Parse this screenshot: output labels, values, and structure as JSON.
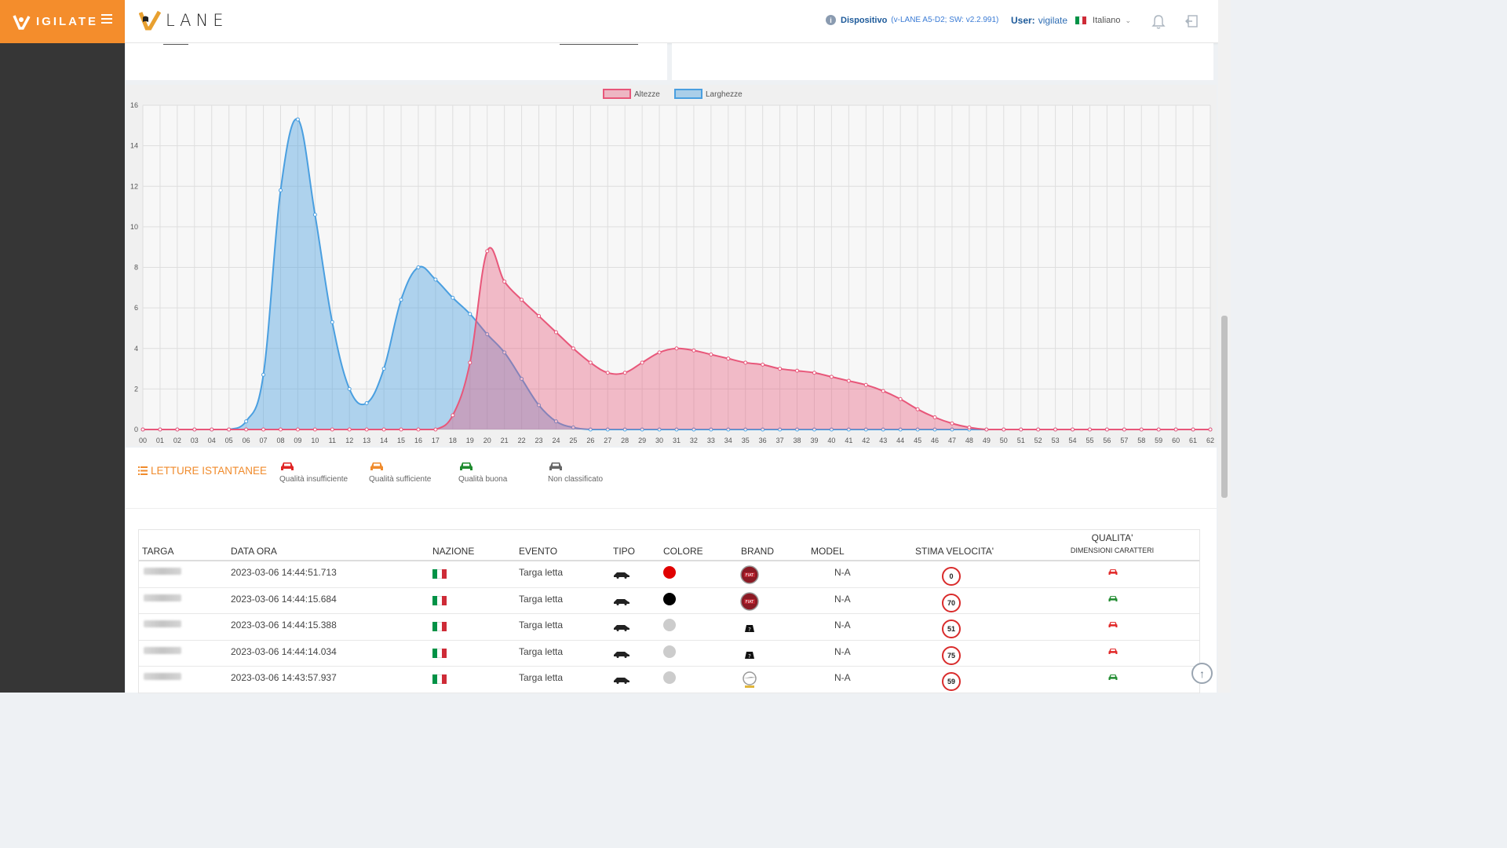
{
  "brand": {
    "name": "IGILATE"
  },
  "app": {
    "name": "LANE"
  },
  "header": {
    "device_label": "Dispositivo",
    "device_value": "(v-LANE A5-D2; SW: v2.2.991)",
    "user_label": "User:",
    "user_name": "vigilate",
    "language": "Italiano"
  },
  "colors": {
    "brand_orange": "#f48d2c",
    "sidebar": "#363636",
    "altezze": "#e8577a",
    "larghezze": "#4a9fe0"
  },
  "chart_data": {
    "type": "area",
    "legend": [
      "Altezze",
      "Larghezze"
    ],
    "legend_position": "top-center",
    "x": [
      "00",
      "01",
      "02",
      "03",
      "04",
      "05",
      "06",
      "07",
      "08",
      "09",
      "10",
      "11",
      "12",
      "13",
      "14",
      "15",
      "16",
      "17",
      "18",
      "19",
      "20",
      "21",
      "22",
      "23",
      "24",
      "25",
      "26",
      "27",
      "28",
      "29",
      "30",
      "31",
      "32",
      "33",
      "34",
      "35",
      "36",
      "37",
      "38",
      "39",
      "40",
      "41",
      "42",
      "43",
      "44",
      "45",
      "46",
      "47",
      "48",
      "49",
      "50",
      "51",
      "52",
      "53",
      "54",
      "55",
      "56",
      "57",
      "58",
      "59",
      "60",
      "61",
      "62"
    ],
    "ylim": [
      0,
      16
    ],
    "yticks": [
      0,
      2,
      4,
      6,
      8,
      10,
      12,
      14,
      16
    ],
    "grid": true,
    "series": [
      {
        "name": "Altezze",
        "color": "#e8577a",
        "values": [
          0,
          0,
          0,
          0,
          0,
          0,
          0,
          0,
          0,
          0,
          0,
          0,
          0,
          0,
          0,
          0,
          0,
          0,
          0.7,
          3.3,
          8.8,
          7.3,
          6.4,
          5.6,
          4.8,
          4.0,
          3.3,
          2.8,
          2.8,
          3.3,
          3.8,
          4.0,
          3.9,
          3.7,
          3.5,
          3.3,
          3.2,
          3.0,
          2.9,
          2.8,
          2.6,
          2.4,
          2.2,
          1.9,
          1.5,
          1.0,
          0.6,
          0.3,
          0.1,
          0,
          0,
          0,
          0,
          0,
          0,
          0,
          0,
          0,
          0,
          0,
          0,
          0,
          0
        ]
      },
      {
        "name": "Larghezze",
        "color": "#4a9fe0",
        "values": [
          0,
          0,
          0,
          0,
          0,
          0,
          0.4,
          2.7,
          11.8,
          15.3,
          10.6,
          5.3,
          2.0,
          1.3,
          3.0,
          6.4,
          8.0,
          7.4,
          6.5,
          5.7,
          4.7,
          3.8,
          2.5,
          1.2,
          0.4,
          0.1,
          0,
          0,
          0,
          0,
          0,
          0,
          0,
          0,
          0,
          0,
          0,
          0,
          0,
          0,
          0,
          0,
          0,
          0,
          0,
          0,
          0,
          0,
          0,
          0,
          0,
          0,
          0,
          0,
          0,
          0,
          0,
          0,
          0,
          0,
          0,
          0,
          0
        ]
      }
    ]
  },
  "snapshots": {
    "title": "LETTURE ISTANTANEE",
    "legend": [
      {
        "label": "Qualità insufficiente",
        "color": "#e02424"
      },
      {
        "label": "Qualità sufficiente",
        "color": "#f08b2c"
      },
      {
        "label": "Qualità buona",
        "color": "#1e8a2e"
      },
      {
        "label": "Non classificato",
        "color": "#666666"
      }
    ],
    "columns": {
      "targa": "TARGA",
      "data_ora": "DATA ORA",
      "nazione": "NAZIONE",
      "evento": "EVENTO",
      "tipo": "TIPO",
      "colore": "COLORE",
      "brand": "BRAND",
      "model": "MODEL",
      "stima_velocita": "STIMA VELOCITA'",
      "qualita": "QUALITA'",
      "qualita_sub": "DIMENSIONI CARATTERI"
    },
    "rows": [
      {
        "data_ora": "2023-03-06 14:44:51.713",
        "evento": "Targa letta",
        "colore": "#e00000",
        "brand": "fiat",
        "model": "N-A",
        "velocita": "0",
        "qualita": "#e02424"
      },
      {
        "data_ora": "2023-03-06 14:44:15.684",
        "evento": "Targa letta",
        "colore": "#000000",
        "brand": "fiat",
        "model": "N-A",
        "velocita": "70",
        "qualita": "#1e8a2e"
      },
      {
        "data_ora": "2023-03-06 14:44:15.388",
        "evento": "Targa letta",
        "colore": "#cccccc",
        "brand": "unknown",
        "model": "N-A",
        "velocita": "51",
        "qualita": "#e02424"
      },
      {
        "data_ora": "2023-03-06 14:44:14.034",
        "evento": "Targa letta",
        "colore": "#cccccc",
        "brand": "unknown",
        "model": "N-A",
        "velocita": "75",
        "qualita": "#e02424"
      },
      {
        "data_ora": "2023-03-06 14:43:57.937",
        "evento": "Targa letta",
        "colore": "#cccccc",
        "brand": "opel",
        "model": "N-A",
        "velocita": "59",
        "qualita": "#1e8a2e"
      }
    ]
  }
}
